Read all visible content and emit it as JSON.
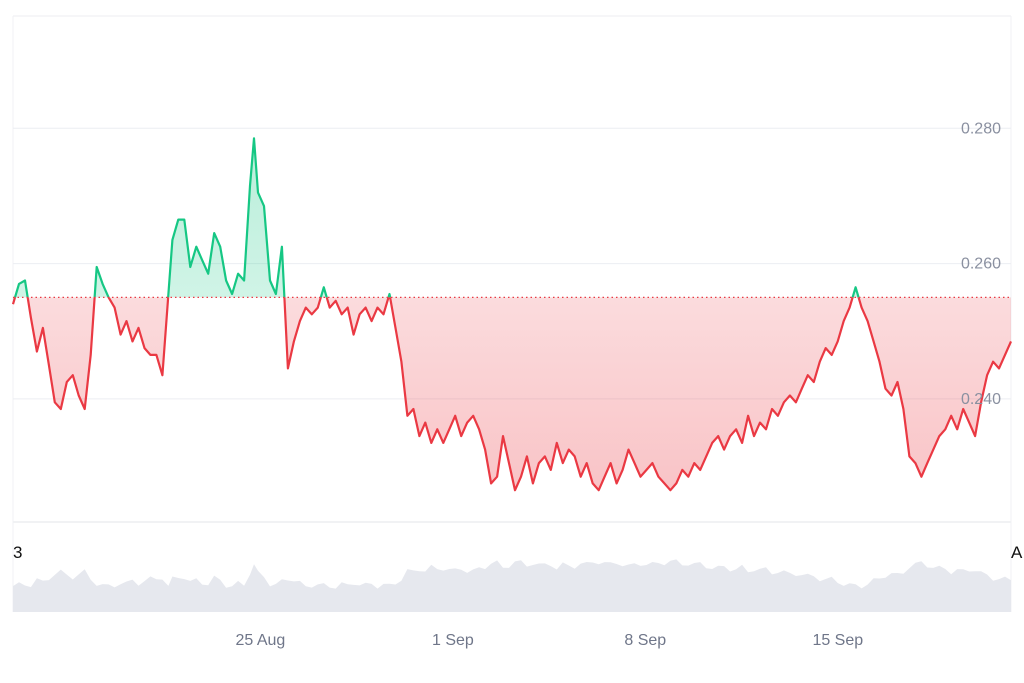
{
  "chart_data": {
    "type": "area",
    "baseline": 0.255,
    "ylim": [
      0.2218,
      0.2966
    ],
    "y_ticks": [
      "0.240",
      "0.260",
      "0.280"
    ],
    "y_tick_values": [
      0.24,
      0.26,
      0.28
    ],
    "x_ticks": [
      "25 Aug",
      "1 Sep",
      "8 Sep",
      "15 Sep"
    ],
    "x_tick_days": [
      9,
      16,
      23,
      30
    ],
    "x_range_days": [
      0,
      36.3
    ],
    "edge_labels": {
      "left": "3",
      "right": "A"
    },
    "grid": true,
    "colors": {
      "above": "#16c784",
      "below": "#ea3943",
      "baseline": "#ea3943",
      "volume": "#e6e8ee",
      "grid": "#eceef2"
    },
    "series": [
      {
        "values": [
          [
            0.0,
            0.254
          ],
          [
            0.3,
            0.257
          ],
          [
            0.6,
            0.2575
          ],
          [
            0.9,
            0.252
          ],
          [
            1.2,
            0.247
          ],
          [
            1.5,
            0.2505
          ],
          [
            1.8,
            0.245
          ],
          [
            2.1,
            0.2395
          ],
          [
            2.4,
            0.2385
          ],
          [
            2.7,
            0.2425
          ],
          [
            3.0,
            0.2435
          ],
          [
            3.3,
            0.2405
          ],
          [
            3.6,
            0.2385
          ],
          [
            3.9,
            0.2465
          ],
          [
            4.2,
            0.2595
          ],
          [
            4.5,
            0.257
          ],
          [
            4.8,
            0.255
          ],
          [
            5.1,
            0.2535
          ],
          [
            5.4,
            0.2495
          ],
          [
            5.7,
            0.2515
          ],
          [
            6.0,
            0.2485
          ],
          [
            6.3,
            0.2505
          ],
          [
            6.6,
            0.2475
          ],
          [
            6.9,
            0.2465
          ],
          [
            7.2,
            0.2465
          ],
          [
            7.5,
            0.2435
          ],
          [
            7.8,
            0.2555
          ],
          [
            8.0,
            0.2635
          ],
          [
            8.3,
            0.2665
          ],
          [
            8.6,
            0.2665
          ],
          [
            8.9,
            0.2595
          ],
          [
            9.2,
            0.2625
          ],
          [
            9.5,
            0.2605
          ],
          [
            9.8,
            0.2585
          ],
          [
            10.1,
            0.2645
          ],
          [
            10.4,
            0.2625
          ],
          [
            10.7,
            0.2575
          ],
          [
            11.0,
            0.2555
          ],
          [
            11.3,
            0.2585
          ],
          [
            11.6,
            0.2575
          ],
          [
            11.9,
            0.2715
          ],
          [
            12.1,
            0.2785
          ],
          [
            12.3,
            0.2705
          ],
          [
            12.6,
            0.2685
          ],
          [
            12.9,
            0.2575
          ],
          [
            13.2,
            0.2555
          ],
          [
            13.5,
            0.2625
          ],
          [
            13.8,
            0.2445
          ],
          [
            14.1,
            0.2485
          ],
          [
            14.4,
            0.2515
          ],
          [
            14.7,
            0.2535
          ],
          [
            15.0,
            0.2525
          ],
          [
            15.3,
            0.2535
          ],
          [
            15.6,
            0.2565
          ],
          [
            15.9,
            0.2535
          ],
          [
            16.2,
            0.2545
          ],
          [
            16.5,
            0.2525
          ],
          [
            16.8,
            0.2535
          ],
          [
            17.1,
            0.2495
          ],
          [
            17.4,
            0.2525
          ],
          [
            17.7,
            0.2535
          ],
          [
            18.0,
            0.2515
          ],
          [
            18.3,
            0.2535
          ],
          [
            18.6,
            0.2525
          ],
          [
            18.9,
            0.2555
          ],
          [
            19.2,
            0.2505
          ],
          [
            19.5,
            0.2455
          ],
          [
            19.8,
            0.2375
          ],
          [
            20.1,
            0.2385
          ],
          [
            20.4,
            0.2345
          ],
          [
            20.7,
            0.2365
          ],
          [
            21.0,
            0.2335
          ],
          [
            21.3,
            0.2355
          ],
          [
            21.6,
            0.2335
          ],
          [
            21.9,
            0.2355
          ],
          [
            22.2,
            0.2375
          ],
          [
            22.5,
            0.2345
          ],
          [
            22.8,
            0.2365
          ],
          [
            23.1,
            0.2375
          ],
          [
            23.4,
            0.2355
          ],
          [
            23.7,
            0.2325
          ],
          [
            24.0,
            0.2275
          ],
          [
            24.3,
            0.2285
          ],
          [
            24.6,
            0.2345
          ],
          [
            24.9,
            0.2305
          ],
          [
            25.2,
            0.2265
          ],
          [
            25.5,
            0.2285
          ],
          [
            25.8,
            0.2315
          ],
          [
            26.1,
            0.2275
          ],
          [
            26.4,
            0.2305
          ],
          [
            26.7,
            0.2315
          ],
          [
            27.0,
            0.2295
          ],
          [
            27.3,
            0.2335
          ],
          [
            27.6,
            0.2305
          ],
          [
            27.9,
            0.2325
          ],
          [
            28.2,
            0.2315
          ],
          [
            28.5,
            0.2285
          ],
          [
            28.8,
            0.2305
          ],
          [
            29.1,
            0.2275
          ],
          [
            29.4,
            0.2265
          ],
          [
            29.7,
            0.2285
          ],
          [
            30.0,
            0.2305
          ],
          [
            30.3,
            0.2275
          ],
          [
            30.6,
            0.2295
          ],
          [
            30.9,
            0.2325
          ],
          [
            31.2,
            0.2305
          ],
          [
            31.5,
            0.2285
          ],
          [
            31.8,
            0.2295
          ],
          [
            32.1,
            0.2305
          ],
          [
            32.4,
            0.2285
          ],
          [
            32.7,
            0.2275
          ],
          [
            33.0,
            0.2265
          ],
          [
            33.3,
            0.2275
          ],
          [
            33.6,
            0.2295
          ],
          [
            33.9,
            0.2285
          ],
          [
            34.2,
            0.2305
          ],
          [
            34.5,
            0.2295
          ],
          [
            34.8,
            0.2315
          ],
          [
            35.1,
            0.2335
          ],
          [
            35.4,
            0.2345
          ],
          [
            35.7,
            0.2325
          ],
          [
            36.0,
            0.2345
          ],
          [
            36.3,
            0.2355
          ],
          [
            36.6,
            0.2335
          ],
          [
            36.9,
            0.2375
          ],
          [
            37.2,
            0.2345
          ],
          [
            37.5,
            0.2365
          ],
          [
            37.8,
            0.2355
          ],
          [
            38.1,
            0.2385
          ],
          [
            38.4,
            0.2375
          ],
          [
            38.7,
            0.2395
          ],
          [
            39.0,
            0.2405
          ],
          [
            39.3,
            0.2395
          ],
          [
            39.6,
            0.2415
          ],
          [
            39.9,
            0.2435
          ],
          [
            40.2,
            0.2425
          ],
          [
            40.5,
            0.2455
          ],
          [
            40.8,
            0.2475
          ],
          [
            41.1,
            0.2465
          ],
          [
            41.4,
            0.2485
          ],
          [
            41.7,
            0.2515
          ],
          [
            42.0,
            0.2535
          ],
          [
            42.3,
            0.2565
          ],
          [
            42.6,
            0.2535
          ],
          [
            42.9,
            0.2515
          ],
          [
            43.2,
            0.2485
          ],
          [
            43.5,
            0.2455
          ],
          [
            43.8,
            0.2415
          ],
          [
            44.1,
            0.2405
          ],
          [
            44.4,
            0.2425
          ],
          [
            44.7,
            0.2385
          ],
          [
            45.0,
            0.2315
          ],
          [
            45.3,
            0.2305
          ],
          [
            45.6,
            0.2285
          ],
          [
            45.9,
            0.2305
          ],
          [
            46.2,
            0.2325
          ],
          [
            46.5,
            0.2345
          ],
          [
            46.8,
            0.2355
          ],
          [
            47.1,
            0.2375
          ],
          [
            47.4,
            0.2355
          ],
          [
            47.7,
            0.2385
          ],
          [
            48.0,
            0.2365
          ],
          [
            48.3,
            0.2345
          ],
          [
            48.6,
            0.2395
          ],
          [
            48.9,
            0.2435
          ],
          [
            49.2,
            0.2455
          ],
          [
            49.5,
            0.2445
          ],
          [
            49.8,
            0.2465
          ],
          [
            50.1,
            0.2485
          ]
        ]
      }
    ]
  }
}
